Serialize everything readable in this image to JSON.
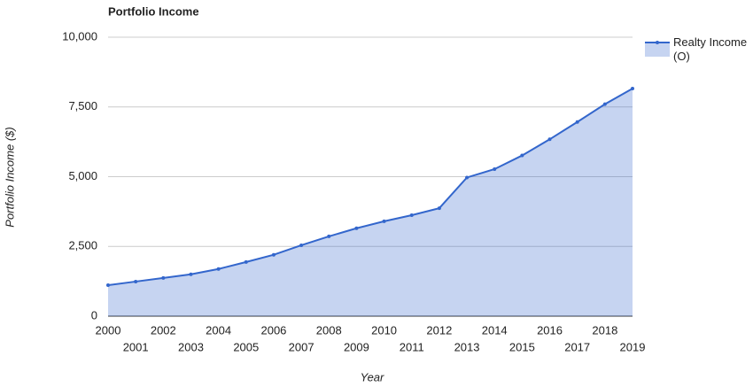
{
  "chart_data": {
    "type": "area",
    "title": "Portfolio Income",
    "x_label": "Year",
    "y_label": "Portfolio Income ($)",
    "categories": [
      "2000",
      "2001",
      "2002",
      "2003",
      "2004",
      "2005",
      "2006",
      "2007",
      "2008",
      "2009",
      "2010",
      "2011",
      "2012",
      "2013",
      "2014",
      "2015",
      "2016",
      "2017",
      "2018",
      "2019"
    ],
    "series": [
      {
        "name": "Realty Income (O)",
        "color": "#3366cc",
        "values": [
          1110,
          1240,
          1370,
          1500,
          1690,
          1940,
          2200,
          2540,
          2860,
          3150,
          3400,
          3620,
          3870,
          4970,
          5270,
          5760,
          6340,
          6960,
          7600,
          8160
        ]
      }
    ],
    "ylim": [
      0,
      10000
    ],
    "yticks": [
      0,
      {
        "value": 2500,
        "label": "2,500"
      },
      {
        "value": 5000,
        "label": "5,000"
      },
      {
        "value": 7500,
        "label": "7,500"
      },
      {
        "value": 10000,
        "label": "10,000"
      }
    ],
    "grid": true,
    "legend": "right"
  }
}
